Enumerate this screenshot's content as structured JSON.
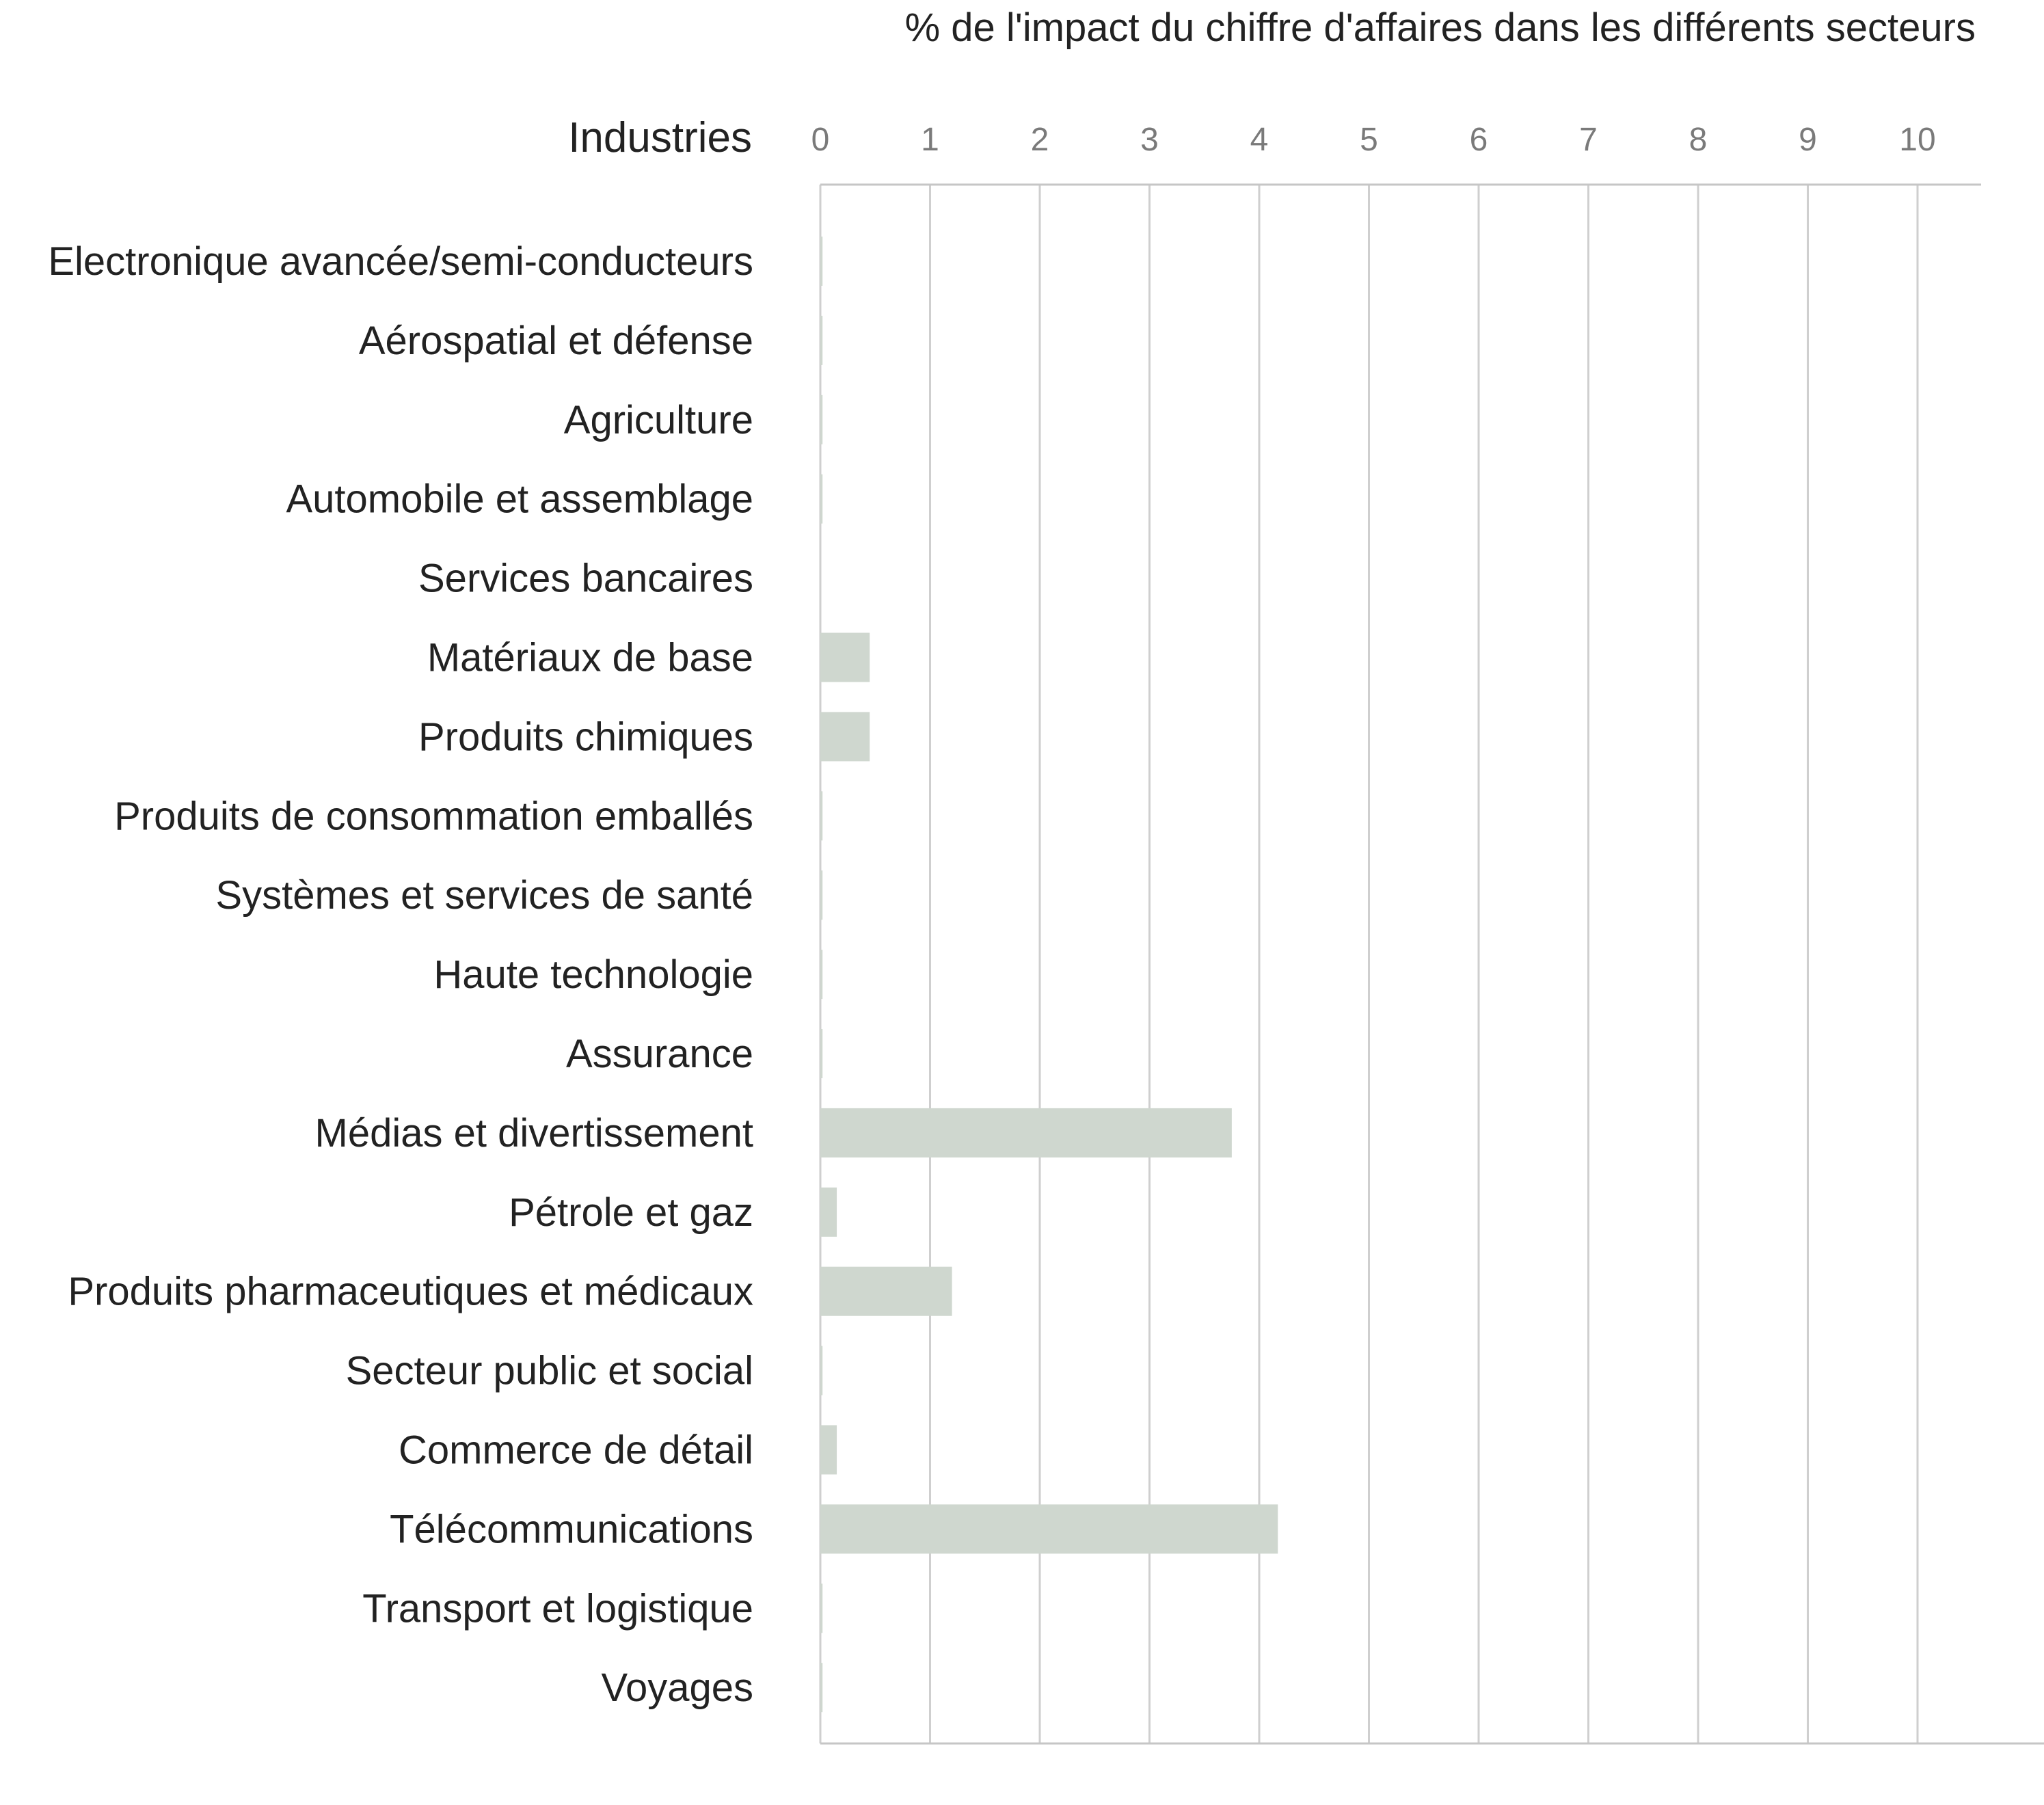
{
  "chart_data": {
    "type": "bar",
    "orientation": "horizontal",
    "title": "% de l'impact du chiffre d'affaires dans les différents secteurs",
    "category_axis_label": "Industries",
    "xlim": [
      0,
      10.6
    ],
    "x_ticks": [
      0,
      1,
      2,
      3,
      4,
      5,
      6,
      7,
      8,
      9,
      10
    ],
    "grid": true,
    "bar_color": "#cfd7cf",
    "categories": [
      "Electronique avancée/semi-conducteurs",
      "Aérospatial et défense",
      "Agriculture",
      "Automobile et assemblage",
      "Services bancaires",
      "Matériaux de base",
      "Produits chimiques",
      "Produits de consommation emballés",
      "Systèmes et services de santé",
      "Haute technologie",
      "Assurance",
      "Médias et divertissement",
      "Pétrole et gaz",
      "Produits pharmaceutiques et médicaux",
      "Secteur public et social",
      "Commerce de détail",
      "Télécommunications",
      "Transport et logistique",
      "Voyages"
    ],
    "values": [
      0.02,
      0.02,
      0.02,
      0.02,
      0,
      0.45,
      0.45,
      0.02,
      0.02,
      0.02,
      0.02,
      3.75,
      0.15,
      1.2,
      0.02,
      0.15,
      4.17,
      0.02,
      0.02
    ]
  }
}
